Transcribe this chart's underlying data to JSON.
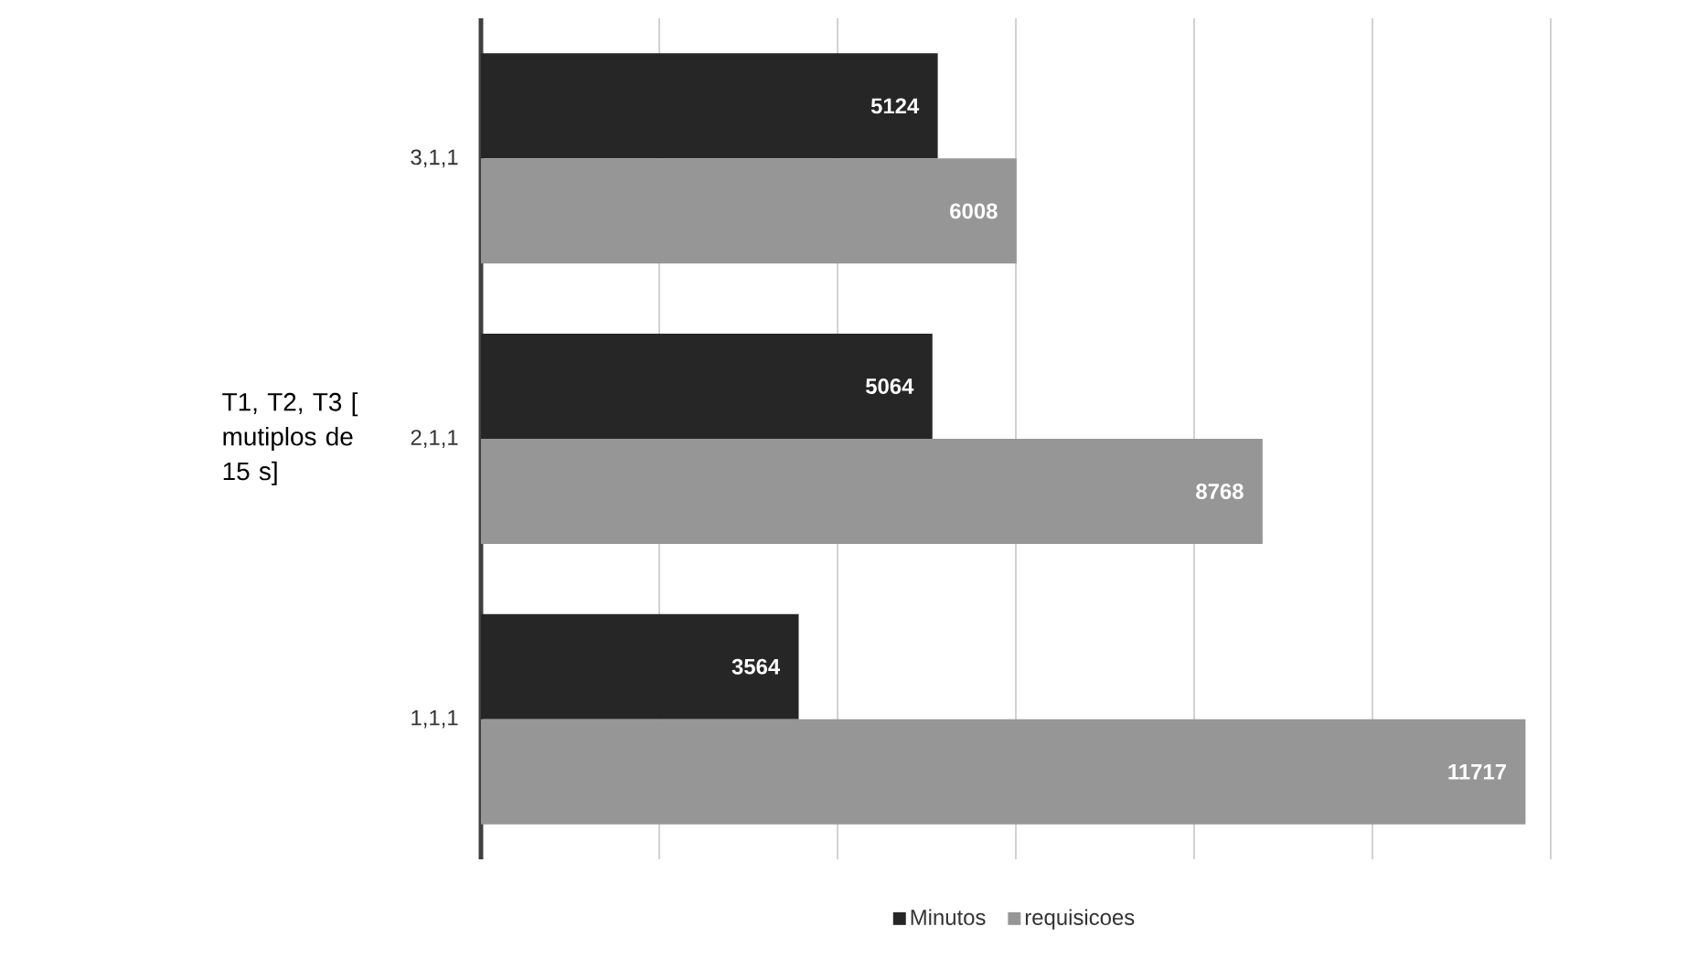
{
  "chart_data": {
    "type": "bar",
    "orientation": "horizontal",
    "ylabel": "T1, T2, T3 [ mutiplos de 15 s]",
    "categories": [
      "3,1,1",
      "2,1,1",
      "1,1,1"
    ],
    "series": [
      {
        "name": "Minutos",
        "color": "#262626",
        "values": [
          5124,
          5064,
          3564
        ]
      },
      {
        "name": "requisicoes",
        "color": "#969696",
        "values": [
          6008,
          8768,
          11717
        ]
      }
    ],
    "xlim": [
      0,
      12000
    ],
    "xticks": [
      {
        "value": 0,
        "label": null
      },
      {
        "value": 2000,
        "label": null
      },
      {
        "value": 4000,
        "label": null
      },
      {
        "value": 6000,
        "label": null
      },
      {
        "value": 8000,
        "label": null
      },
      {
        "value": 10000,
        "label": null
      },
      {
        "value": 12000,
        "label": null
      }
    ],
    "tick_labels": "y",
    "grid": "x",
    "legend": "bottom",
    "data_labels": true
  }
}
